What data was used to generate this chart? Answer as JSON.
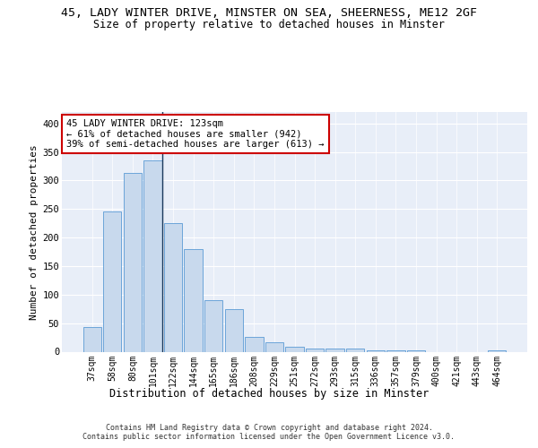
{
  "title1": "45, LADY WINTER DRIVE, MINSTER ON SEA, SHEERNESS, ME12 2GF",
  "title2": "Size of property relative to detached houses in Minster",
  "xlabel": "Distribution of detached houses by size in Minster",
  "ylabel": "Number of detached properties",
  "categories": [
    "37sqm",
    "58sqm",
    "80sqm",
    "101sqm",
    "122sqm",
    "144sqm",
    "165sqm",
    "186sqm",
    "208sqm",
    "229sqm",
    "251sqm",
    "272sqm",
    "293sqm",
    "315sqm",
    "336sqm",
    "357sqm",
    "379sqm",
    "400sqm",
    "421sqm",
    "443sqm",
    "464sqm"
  ],
  "values": [
    43,
    245,
    313,
    335,
    225,
    180,
    90,
    75,
    26,
    16,
    9,
    5,
    5,
    5,
    3,
    2,
    2,
    0,
    0,
    0,
    3
  ],
  "bar_color": "#c8d9ed",
  "bar_edge_color": "#5b9bd5",
  "highlight_index": 3,
  "highlight_line_color": "#1a3a5c",
  "annotation_text": "45 LADY WINTER DRIVE: 123sqm\n← 61% of detached houses are smaller (942)\n39% of semi-detached houses are larger (613) →",
  "annotation_box_color": "#ffffff",
  "annotation_box_edge": "#cc0000",
  "footer": "Contains HM Land Registry data © Crown copyright and database right 2024.\nContains public sector information licensed under the Open Government Licence v3.0.",
  "ylim": [
    0,
    420
  ],
  "yticks": [
    0,
    50,
    100,
    150,
    200,
    250,
    300,
    350,
    400
  ],
  "plot_background": "#e8eef8",
  "title1_fontsize": 9.5,
  "title2_fontsize": 8.5,
  "tick_fontsize": 7,
  "ylabel_fontsize": 8,
  "xlabel_fontsize": 8.5,
  "footer_fontsize": 6
}
